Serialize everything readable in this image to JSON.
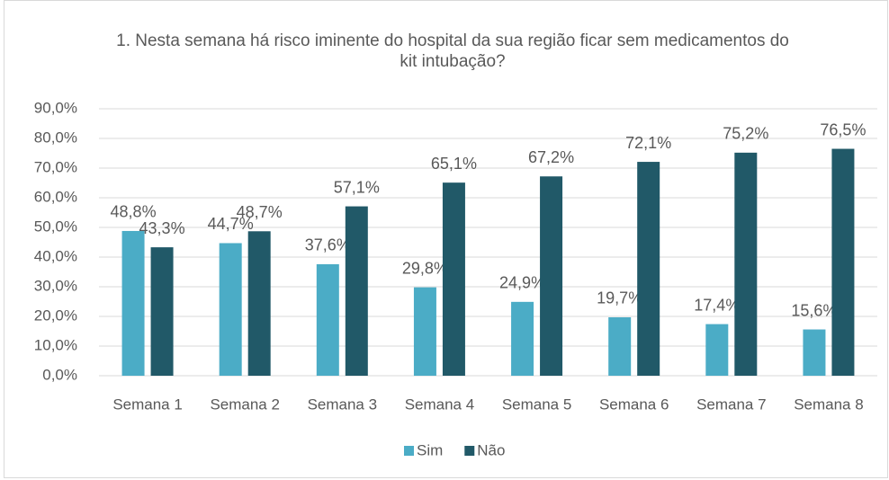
{
  "chart_data": {
    "type": "bar",
    "title": "1. Nesta semana há risco iminente do hospital da sua região ficar sem medicamentos do kit intubação?",
    "categories": [
      "Semana 1",
      "Semana 2",
      "Semana 3",
      "Semana 4",
      "Semana 5",
      "Semana 6",
      "Semana 7",
      "Semana 8"
    ],
    "series": [
      {
        "name": "Sim",
        "color": "#4bacc6",
        "values": [
          48.8,
          44.7,
          37.6,
          29.8,
          24.9,
          19.7,
          17.4,
          15.6
        ],
        "value_labels": [
          "48,8%",
          "44,7%",
          "37,6%",
          "29,8%",
          "24,9%",
          "19,7%",
          "17,4%",
          "15,6%"
        ]
      },
      {
        "name": "Não",
        "color": "#215968",
        "values": [
          43.3,
          48.7,
          57.1,
          65.1,
          67.2,
          72.1,
          75.2,
          76.5
        ],
        "value_labels": [
          "43,3%",
          "48,7%",
          "57,1%",
          "65,1%",
          "67,2%",
          "72,1%",
          "75,2%",
          "76,5%"
        ]
      }
    ],
    "ylim": [
      0,
      90
    ],
    "yticks": [
      {
        "value": 0,
        "label": "0,0%"
      },
      {
        "value": 10,
        "label": "10,0%"
      },
      {
        "value": 20,
        "label": "20,0%"
      },
      {
        "value": 30,
        "label": "30,0%"
      },
      {
        "value": 40,
        "label": "40,0%"
      },
      {
        "value": 50,
        "label": "50,0%"
      },
      {
        "value": 60,
        "label": "60,0%"
      },
      {
        "value": 70,
        "label": "70,0%"
      },
      {
        "value": 80,
        "label": "80,0%"
      },
      {
        "value": 90,
        "label": "90,0%"
      }
    ],
    "grid": true,
    "legend": "bottom"
  }
}
